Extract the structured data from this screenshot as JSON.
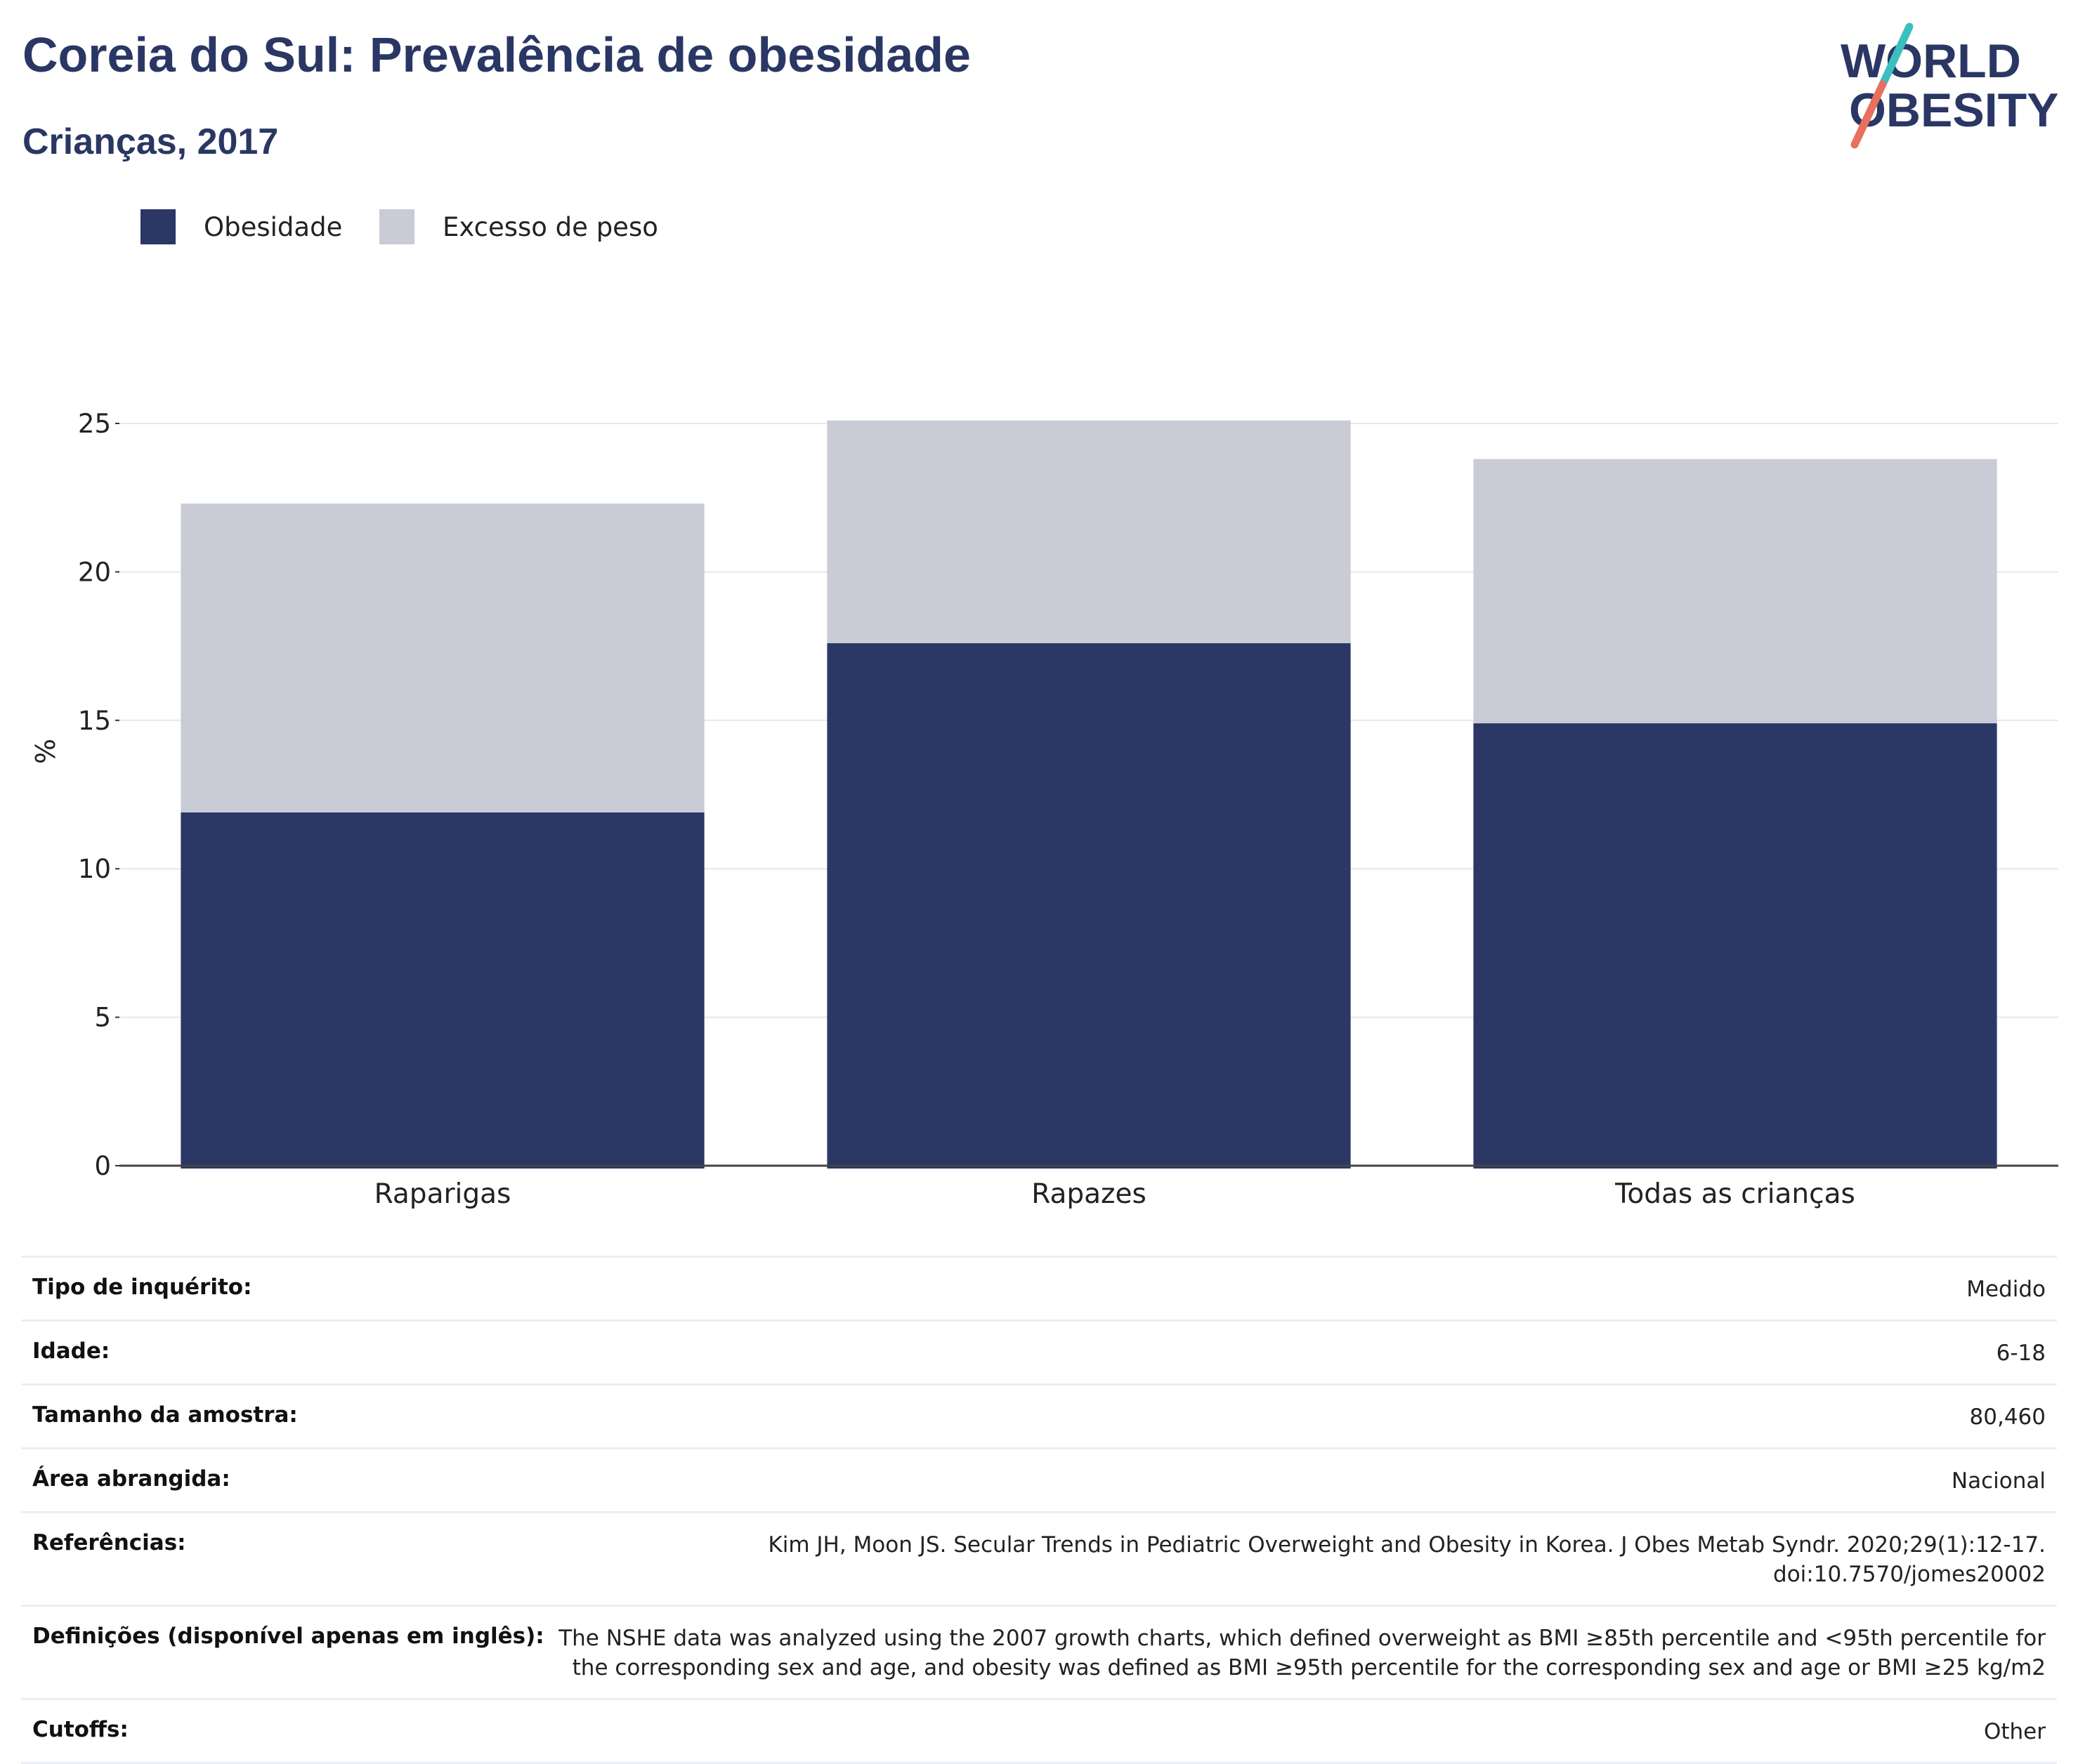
{
  "header": {
    "title": "Coreia do Sul: Prevalência de obesidade",
    "subtitle": "Crianças, 2017"
  },
  "logo": {
    "line1": "WORLD",
    "line2": "OBESITY",
    "icon": "world-obesity-logo",
    "accent_teal": "#3bbfc0",
    "accent_coral": "#e8705e"
  },
  "legend": [
    {
      "label": "Obesidade",
      "color": "#2b3764"
    },
    {
      "label": "Excesso de peso",
      "color": "#c9cbd6"
    }
  ],
  "chart_data": {
    "type": "bar",
    "stacked": true,
    "categories": [
      "Raparigas",
      "Rapazes",
      "Todas as crianças"
    ],
    "series": [
      {
        "name": "Obesidade",
        "values": [
          11.9,
          17.6,
          14.9
        ]
      },
      {
        "name": "Excesso de peso",
        "values": [
          10.4,
          7.5,
          8.9
        ]
      }
    ],
    "ylabel": "%",
    "ylim": [
      0,
      25
    ],
    "yticks": [
      0,
      5,
      10,
      15,
      20,
      25
    ],
    "grid": true,
    "legend_position": "top-left"
  },
  "details": [
    {
      "key": "Tipo de inquérito:",
      "value": "Medido"
    },
    {
      "key": "Idade:",
      "value": "6-18"
    },
    {
      "key": "Tamanho da amostra:",
      "value": "80,460"
    },
    {
      "key": "Área abrangida:",
      "value": "Nacional"
    },
    {
      "key": "Referências:",
      "value": "Kim JH, Moon JS. Secular Trends in Pediatric Overweight and Obesity in Korea. J Obes Metab Syndr. 2020;29(1):12-17. doi:10.7570/jomes20002"
    },
    {
      "key": "Definições (disponível apenas em inglês):",
      "value": "The NSHE data was analyzed using the 2007 growth charts, which defined overweight as BMI ≥85th percentile and <95th percentile for the corresponding sex and age, and obesity was defined as BMI ≥95th percentile for the corresponding sex and age or BMI ≥25 kg/m2"
    },
    {
      "key": "Cutoffs:",
      "value": "Other"
    }
  ]
}
